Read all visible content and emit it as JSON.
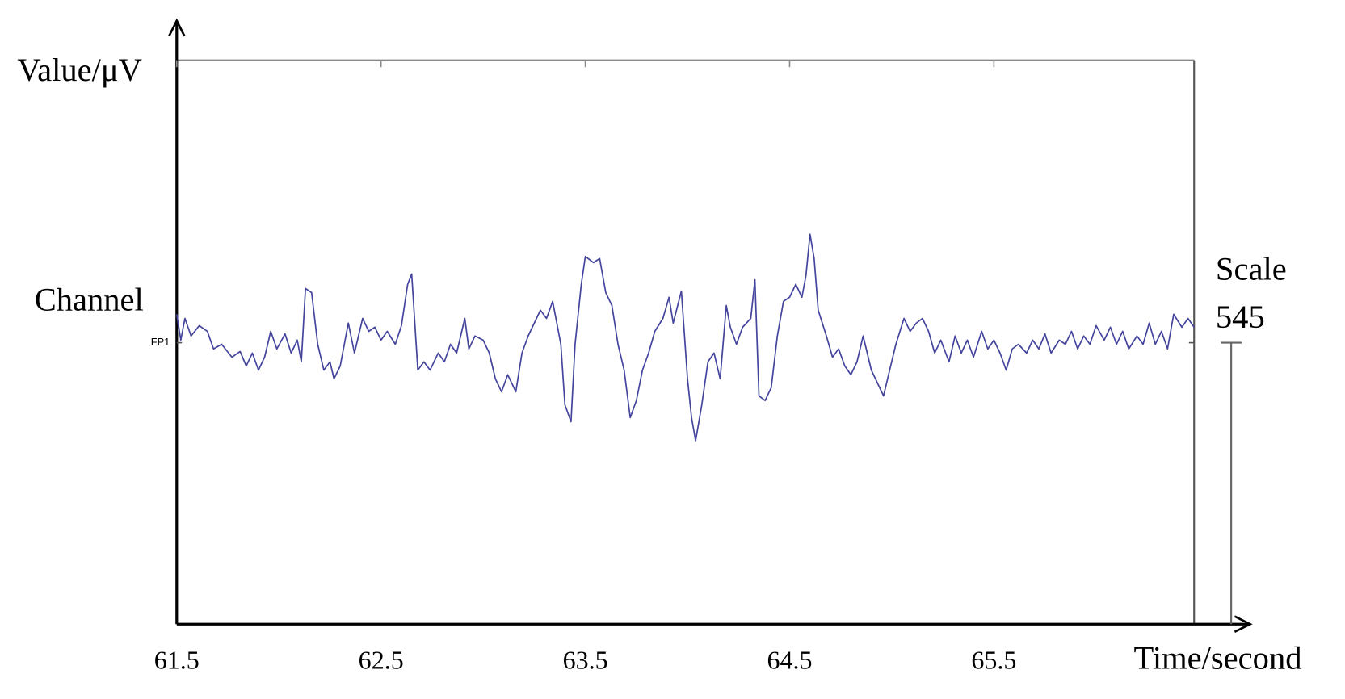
{
  "chart_data": {
    "type": "line",
    "y_label": "Value/μV",
    "y_group_label": "Channel",
    "x_label": "Time/second",
    "scale_label": "Scale",
    "scale": 545,
    "x": [
      61.5,
      61.52,
      61.54,
      61.57,
      61.61,
      61.65,
      61.68,
      61.72,
      61.77,
      61.81,
      61.84,
      61.87,
      61.9,
      61.93,
      61.96,
      61.99,
      62.03,
      62.06,
      62.09,
      62.11,
      62.13,
      62.16,
      62.19,
      62.22,
      62.25,
      62.27,
      62.3,
      62.34,
      62.37,
      62.41,
      62.44,
      62.47,
      62.5,
      62.53,
      62.57,
      62.6,
      62.63,
      62.65,
      62.68,
      62.71,
      62.74,
      62.78,
      62.81,
      62.84,
      62.87,
      62.91,
      62.93,
      62.96,
      63.0,
      63.03,
      63.06,
      63.09,
      63.12,
      63.16,
      63.19,
      63.22,
      63.25,
      63.28,
      63.31,
      63.34,
      63.38,
      63.4,
      63.43,
      63.45,
      63.48,
      63.5,
      63.54,
      63.57,
      63.6,
      63.63,
      63.66,
      63.69,
      63.72,
      63.75,
      63.78,
      63.81,
      63.84,
      63.88,
      63.91,
      63.93,
      63.97,
      64.0,
      64.02,
      64.04,
      64.07,
      64.1,
      64.13,
      64.16,
      64.19,
      64.21,
      64.24,
      64.27,
      64.31,
      64.33,
      64.35,
      64.38,
      64.41,
      64.44,
      64.47,
      64.5,
      64.53,
      64.56,
      64.58,
      64.6,
      64.62,
      64.64,
      64.68,
      64.71,
      64.74,
      64.77,
      64.8,
      64.83,
      64.86,
      64.9,
      64.93,
      64.96,
      64.99,
      65.02,
      65.06,
      65.09,
      65.12,
      65.15,
      65.18,
      65.21,
      65.24,
      65.28,
      65.31,
      65.34,
      65.37,
      65.4,
      65.44,
      65.47,
      65.5,
      65.53,
      65.56,
      65.59,
      65.62,
      65.66,
      65.69,
      65.72,
      65.75,
      65.78,
      65.82,
      65.85,
      65.88,
      65.91,
      65.94,
      65.97,
      66.0,
      66.04,
      66.07,
      66.1,
      66.13,
      66.16,
      66.2,
      66.23,
      66.26,
      66.29,
      66.32,
      66.35,
      66.38,
      66.42,
      66.45,
      66.48
    ],
    "series": [
      {
        "name": "FP1",
        "color": "#45459e",
        "values": [
          55,
          5,
          47,
          13,
          33,
          22,
          -12,
          -3,
          -28,
          -17,
          -45,
          -20,
          -53,
          -28,
          22,
          -12,
          17,
          -20,
          5,
          -37,
          105,
          97,
          -3,
          -53,
          -37,
          -70,
          -45,
          38,
          -20,
          47,
          22,
          30,
          5,
          22,
          -3,
          33,
          113,
          133,
          -53,
          -37,
          -53,
          -20,
          -37,
          -3,
          -20,
          47,
          -12,
          13,
          5,
          -20,
          -70,
          -95,
          -62,
          -95,
          -20,
          13,
          38,
          63,
          47,
          80,
          -3,
          -120,
          -153,
          -3,
          113,
          167,
          155,
          163,
          97,
          72,
          -3,
          -53,
          -145,
          -112,
          -53,
          -20,
          22,
          47,
          88,
          38,
          100,
          -70,
          -145,
          -190,
          -120,
          -37,
          -20,
          -70,
          72,
          30,
          -3,
          30,
          47,
          122,
          -103,
          -112,
          -87,
          13,
          80,
          88,
          113,
          88,
          130,
          210,
          163,
          63,
          13,
          -28,
          -12,
          -45,
          -62,
          -37,
          13,
          -53,
          -78,
          -103,
          -53,
          -3,
          47,
          22,
          38,
          47,
          22,
          -20,
          5,
          -37,
          13,
          -20,
          5,
          -28,
          22,
          -12,
          5,
          -20,
          -53,
          -12,
          -3,
          -20,
          5,
          -12,
          17,
          -20,
          5,
          -3,
          22,
          -12,
          13,
          -3,
          33,
          5,
          30,
          -3,
          22,
          -12,
          13,
          -3,
          38,
          -3,
          22,
          -12,
          55,
          30,
          47,
          30
        ]
      }
    ],
    "xlim": [
      61.5,
      66.48
    ],
    "xticks": [
      61.5,
      62.5,
      63.5,
      64.5,
      65.5
    ],
    "ylim": [
      -545,
      547
    ],
    "yticks": [
      {
        "value": 0,
        "label": "FP1"
      }
    ]
  }
}
